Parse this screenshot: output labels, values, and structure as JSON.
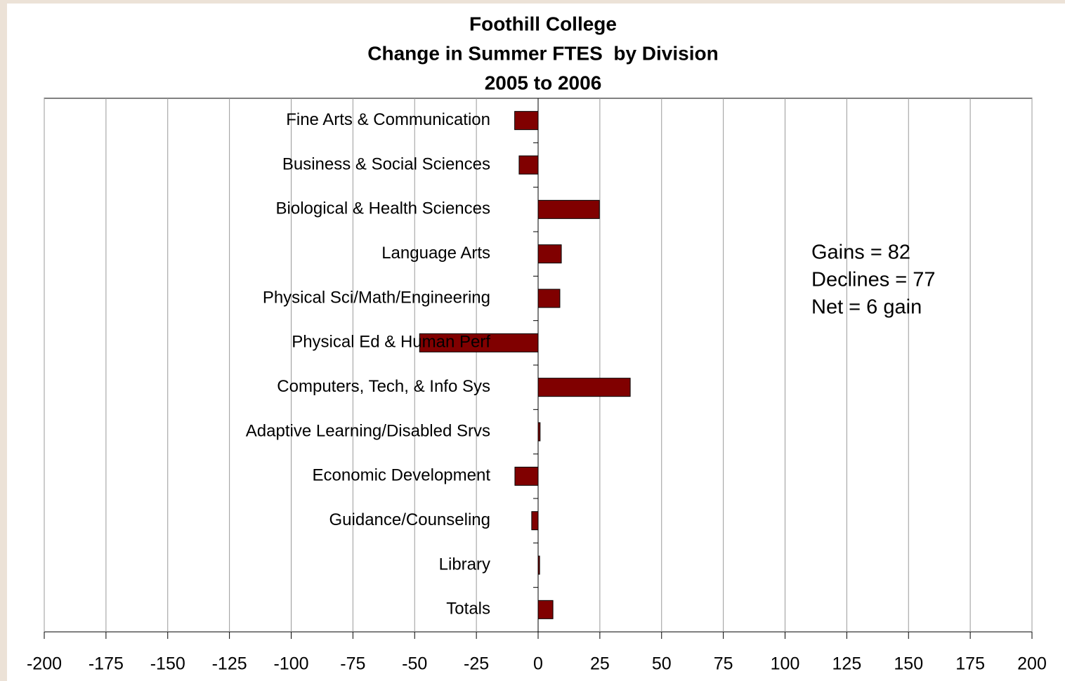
{
  "chart_data": {
    "type": "barh",
    "title": [
      "Foothill College",
      "Change in Summer FTES  by Division",
      "2005 to 2006"
    ],
    "categories": [
      "Fine Arts & Communication",
      "Business & Social Sciences",
      "Biological & Health Sciences",
      "Language Arts",
      "Physical Sci/Math/Engineering",
      "Physical Ed & Human Perf",
      "Computers, Tech, & Info Sys",
      "Adaptive Learning/Disabled Srvs",
      "Economic Development",
      "Guidance/Counseling",
      "Library",
      "Totals"
    ],
    "values": [
      -9.5,
      -7.7,
      24.8,
      9.4,
      8.8,
      -48,
      37.3,
      0.8,
      -9.4,
      -2.6,
      0.6,
      6
    ],
    "color": "#800000",
    "xlim": [
      -200,
      200
    ],
    "xticks": [
      -200,
      -175,
      -150,
      -125,
      -100,
      -75,
      -50,
      -25,
      0,
      25,
      50,
      75,
      100,
      125,
      150,
      175,
      200
    ],
    "grid": true,
    "annotations": [
      "Gains = 82",
      "Declines = 77",
      "Net = 6 gain"
    ]
  }
}
